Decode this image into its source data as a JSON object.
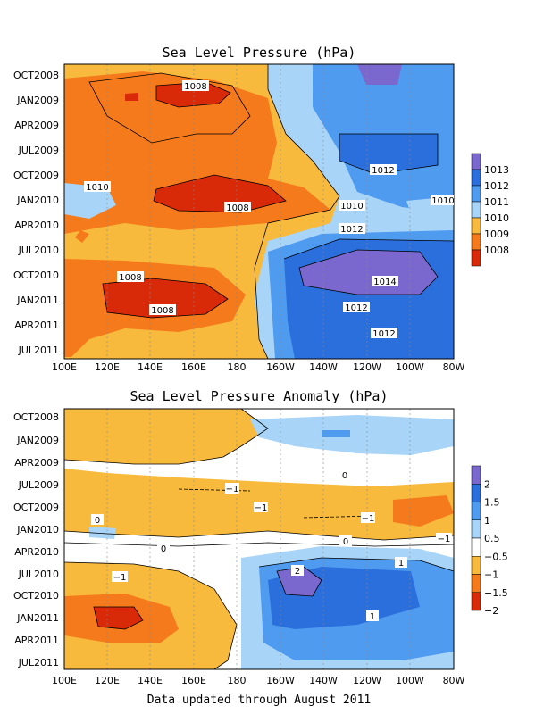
{
  "footer": "Data updated through August 2011",
  "chart_data": [
    {
      "type": "heatmap",
      "title": "Sea Level Pressure (hPa)",
      "x_ticks": [
        "100E",
        "120E",
        "140E",
        "160E",
        "180",
        "160W",
        "140W",
        "120W",
        "100W",
        "80W"
      ],
      "y_ticks": [
        "OCT2008",
        "JAN2009",
        "APR2009",
        "JUL2009",
        "OCT2009",
        "JAN2010",
        "APR2010",
        "JUL2010",
        "OCT2010",
        "JAN2011",
        "APR2011",
        "JUL2011"
      ],
      "colorbar": {
        "labels": [
          "1013",
          "1012",
          "1011",
          "1010",
          "1009",
          "1008"
        ],
        "colors": [
          "#7b68cf",
          "#2b6fdc",
          "#4f9bf0",
          "#a8d4f7",
          "#f8ba3c",
          "#f57a1c",
          "#d82a08"
        ]
      },
      "contour_labels": [
        "1008",
        "1012",
        "1010",
        "1008",
        "1010",
        "1010",
        "1012",
        "1008",
        "1014",
        "1008",
        "1012",
        "1012"
      ],
      "grid": true
    },
    {
      "type": "heatmap",
      "title": "Sea Level Pressure Anomaly (hPa)",
      "x_ticks": [
        "100E",
        "120E",
        "140E",
        "160E",
        "180",
        "160W",
        "140W",
        "120W",
        "100W",
        "80W"
      ],
      "y_ticks": [
        "OCT2008",
        "JAN2009",
        "APR2009",
        "JUL2009",
        "OCT2009",
        "JAN2010",
        "APR2010",
        "JUL2010",
        "OCT2010",
        "JAN2011",
        "APR2011",
        "JUL2011"
      ],
      "colorbar": {
        "labels": [
          "2",
          "1.5",
          "1",
          "0.5",
          "−0.5",
          "−1",
          "−1.5",
          "−2"
        ],
        "colors": [
          "#7b68cf",
          "#2b6fdc",
          "#4f9bf0",
          "#a8d4f7",
          "#ffffff",
          "#f8ba3c",
          "#f57a1c",
          "#d82a08"
        ]
      },
      "contour_labels": [
        "0",
        "−1",
        "−1",
        "−1",
        "0",
        "−1",
        "0",
        "0",
        "1",
        "−1",
        "2",
        "1"
      ],
      "grid": true
    }
  ]
}
